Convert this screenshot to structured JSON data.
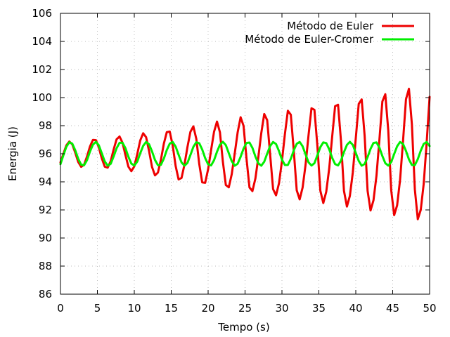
{
  "chart_data": {
    "type": "line",
    "title": "",
    "xlabel": "Tempo (s)",
    "ylabel": "Energia (J)",
    "xlim": [
      0,
      50
    ],
    "ylim": [
      86,
      106
    ],
    "xticks": [
      0,
      5,
      10,
      15,
      20,
      25,
      30,
      35,
      40,
      45,
      50
    ],
    "yticks": [
      86,
      88,
      90,
      92,
      94,
      96,
      98,
      100,
      102,
      104,
      106
    ],
    "x_tick_labels": [
      "0",
      "5",
      "10",
      "15",
      "20",
      "25",
      "30",
      "35",
      "40",
      "45",
      "50"
    ],
    "y_tick_labels": [
      "86",
      "88",
      "90",
      "92",
      "94",
      "96",
      "98",
      "100",
      "102",
      "104",
      "106"
    ],
    "grid": true,
    "legend": "top-right",
    "series": [
      {
        "name": "Método de Euler",
        "color": "#ee0000",
        "x": [
          0,
          0.4,
          0.8,
          1.2,
          1.6,
          2.0,
          2.4,
          2.8,
          3.2,
          3.6,
          4.0,
          4.4,
          4.8,
          5.2,
          5.6,
          6.0,
          6.4,
          6.8,
          7.2,
          7.6,
          8.0,
          8.4,
          8.8,
          9.2,
          9.6,
          10.0,
          10.4,
          10.8,
          11.2,
          11.6,
          12.0,
          12.4,
          12.8,
          13.2,
          13.6,
          14.0,
          14.4,
          14.8,
          15.2,
          15.6,
          16.0,
          16.4,
          16.8,
          17.2,
          17.6,
          18.0,
          18.4,
          18.8,
          19.2,
          19.6,
          20.0,
          20.4,
          20.8,
          21.2,
          21.6,
          22.0,
          22.4,
          22.8,
          23.2,
          23.6,
          24.0,
          24.4,
          24.8,
          25.2,
          25.6,
          26.0,
          26.4,
          26.8,
          27.2,
          27.6,
          28.0,
          28.4,
          28.8,
          29.2,
          29.6,
          30.0,
          30.4,
          30.8,
          31.2,
          31.6,
          32.0,
          32.4,
          32.8,
          33.2,
          33.6,
          34.0,
          34.4,
          34.8,
          35.2,
          35.6,
          36.0,
          36.4,
          36.8,
          37.2,
          37.6,
          38.0,
          38.4,
          38.8,
          39.2,
          39.6,
          40.0,
          40.4,
          40.8,
          41.2,
          41.6,
          42.0,
          42.4,
          42.8,
          43.2,
          43.6,
          44.0,
          44.4,
          44.8,
          45.2,
          45.6,
          46.0,
          46.4,
          46.8,
          47.2,
          47.6,
          48.0,
          48.4,
          48.8,
          49.2,
          49.6,
          50.0
        ],
        "y": [
          95.38,
          96.01,
          96.6,
          96.87,
          96.67,
          96.08,
          95.42,
          95.07,
          95.22,
          95.81,
          96.52,
          96.99,
          96.97,
          96.45,
          95.67,
          95.08,
          95.01,
          95.47,
          96.3,
          97.03,
          97.23,
          96.79,
          95.91,
          95.08,
          94.76,
          95.1,
          95.97,
          96.94,
          97.46,
          97.18,
          96.2,
          95.06,
          94.46,
          94.66,
          95.56,
          96.71,
          97.54,
          97.58,
          96.6,
          95.13,
          94.17,
          94.28,
          95.24,
          96.48,
          97.56,
          97.95,
          97.06,
          95.26,
          93.96,
          93.93,
          94.9,
          96.25,
          97.56,
          98.29,
          97.53,
          95.42,
          93.77,
          93.61,
          94.55,
          96.0,
          97.53,
          98.6,
          97.99,
          95.65,
          93.6,
          93.34,
          94.23,
          95.75,
          97.47,
          98.83,
          98.39,
          95.94,
          93.48,
          93.04,
          93.9,
          95.48,
          97.4,
          99.06,
          98.78,
          96.23,
          93.4,
          92.75,
          93.6,
          95.22,
          97.32,
          99.24,
          99.13,
          96.55,
          93.37,
          92.49,
          93.3,
          94.95,
          97.2,
          99.39,
          99.49,
          96.9,
          93.36,
          92.24,
          93.0,
          94.68,
          97.1,
          99.55,
          99.87,
          97.28,
          93.36,
          91.96,
          92.69,
          94.42,
          97.0,
          99.72,
          100.24,
          97.66,
          93.4,
          91.63,
          92.33,
          94.14,
          96.9,
          99.88,
          100.63,
          98.1,
          93.47,
          91.34,
          92.0,
          93.86,
          96.78,
          100.05
        ]
      },
      {
        "name": "Método de Euler-Cromer",
        "color": "#00ee00",
        "x": [
          0,
          0.4,
          0.8,
          1.2,
          1.6,
          2.0,
          2.4,
          2.8,
          3.2,
          3.6,
          4.0,
          4.4,
          4.8,
          5.2,
          5.6,
          6.0,
          6.4,
          6.8,
          7.2,
          7.6,
          8.0,
          8.4,
          8.8,
          9.2,
          9.6,
          10.0,
          10.4,
          10.8,
          11.2,
          11.6,
          12.0,
          12.4,
          12.8,
          13.2,
          13.6,
          14.0,
          14.4,
          14.8,
          15.2,
          15.6,
          16.0,
          16.4,
          16.8,
          17.2,
          17.6,
          18.0,
          18.4,
          18.8,
          19.2,
          19.6,
          20.0,
          20.4,
          20.8,
          21.2,
          21.6,
          22.0,
          22.4,
          22.8,
          23.2,
          23.6,
          24.0,
          24.4,
          24.8,
          25.2,
          25.6,
          26.0,
          26.4,
          26.8,
          27.2,
          27.6,
          28.0,
          28.4,
          28.8,
          29.2,
          29.6,
          30.0,
          30.4,
          30.8,
          31.2,
          31.6,
          32.0,
          32.4,
          32.8,
          33.2,
          33.6,
          34.0,
          34.4,
          34.8,
          35.2,
          35.6,
          36.0,
          36.4,
          36.8,
          37.2,
          37.6,
          38.0,
          38.4,
          38.8,
          39.2,
          39.6,
          40.0,
          40.4,
          40.8,
          41.2,
          41.6,
          42.0,
          42.4,
          42.8,
          43.2,
          43.6,
          44.0,
          44.4,
          44.8,
          45.2,
          45.6,
          46.0,
          46.4,
          46.8,
          47.2,
          47.6,
          48.0,
          48.4,
          48.8,
          49.2,
          49.6,
          50.0
        ],
        "y": [
          95.26,
          95.9,
          96.5,
          96.82,
          96.72,
          96.25,
          95.65,
          95.22,
          95.18,
          95.55,
          96.16,
          96.65,
          96.85,
          96.6,
          96.03,
          95.45,
          95.15,
          95.28,
          95.8,
          96.39,
          96.78,
          96.79,
          96.4,
          95.79,
          95.3,
          95.16,
          95.44,
          96.03,
          96.56,
          96.84,
          96.68,
          96.17,
          95.56,
          95.19,
          95.21,
          95.65,
          96.26,
          96.72,
          96.84,
          96.51,
          95.93,
          95.38,
          95.15,
          95.35,
          95.91,
          96.49,
          96.82,
          96.75,
          96.3,
          95.69,
          95.25,
          95.17,
          95.54,
          96.14,
          96.64,
          96.85,
          96.61,
          96.04,
          95.47,
          95.15,
          95.29,
          95.78,
          96.37,
          96.77,
          96.8,
          96.42,
          95.81,
          95.32,
          95.15,
          95.43,
          96.01,
          96.55,
          96.84,
          96.69,
          96.19,
          95.58,
          95.2,
          95.2,
          95.64,
          96.24,
          96.71,
          96.84,
          96.53,
          95.95,
          95.39,
          95.16,
          95.33,
          95.89,
          96.47,
          96.81,
          96.76,
          96.32,
          95.71,
          95.26,
          95.17,
          95.52,
          96.12,
          96.63,
          96.85,
          96.63,
          96.06,
          95.49,
          95.15,
          95.27,
          95.76,
          96.35,
          96.77,
          96.81,
          96.44,
          95.84,
          95.33,
          95.16,
          95.41,
          95.98,
          96.53,
          96.84,
          96.7,
          96.2,
          95.6,
          95.2,
          95.19,
          95.62,
          96.22,
          96.7,
          96.84,
          96.55
        ]
      }
    ]
  }
}
